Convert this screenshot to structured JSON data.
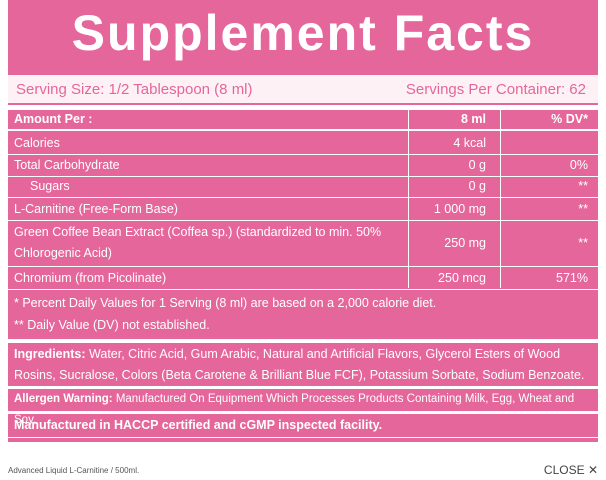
{
  "header": {
    "title": "Supplement Facts",
    "serving_size": "Serving Size: 1/2 Tablespoon (8 ml)",
    "servings_per_container": "Servings Per Container: 62"
  },
  "table": {
    "columns": [
      "Amount Per :",
      "8 ml",
      "% DV*"
    ],
    "rows": [
      [
        "Calories",
        "4 kcal",
        null
      ],
      [
        "Total Carbohydrate",
        "0 g",
        "0%"
      ],
      [
        "Sugars",
        "0 g",
        "**"
      ],
      [
        "L-Carnitine (Free-Form Base)",
        "1 000 mg",
        "**"
      ],
      [
        "Green Coffee Bean Extract (Coffea sp.) (standardized to min. 50% Chlorogenic Acid)",
        "250 mg",
        "**"
      ],
      [
        "Chromium (from Picolinate)",
        "250 mcg",
        "571%"
      ]
    ]
  },
  "footnotes": [
    "* Percent Daily Values for 1 Serving (8 ml) are based on a 2,000 calorie diet.",
    "** Daily Value (DV) not established."
  ],
  "ingredients": {
    "label": "Ingredients:",
    "text": "Water, Citric Acid, Gum Arabic, Natural and Artificial Flavors, Glycerol Esters of Wood Rosins, Sucralose, Colors (Beta Carotene & Brilliant Blue FCF), Potassium Sorbate, Sodium Benzoate."
  },
  "allergen": {
    "label": "Allergen Warning:",
    "text": "Manufactured On Equipment Which Processes Products Containing Milk, Egg, Wheat and Soy."
  },
  "manufactured": "Manufactured in HACCP certified and cGMP inspected facility.",
  "caption": "Advanced Liquid L-Carnitine / 500ml.",
  "close": "CLOSE ✕"
}
